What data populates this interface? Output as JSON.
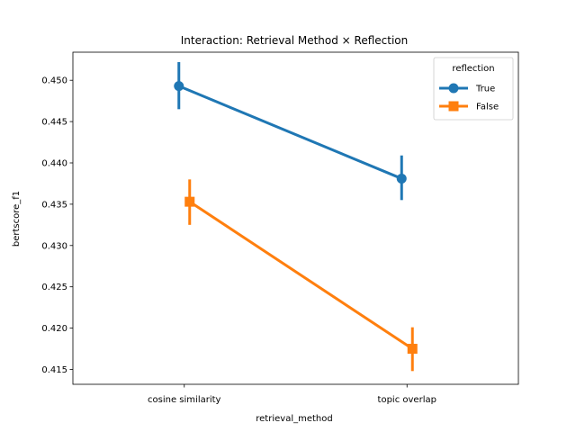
{
  "chart_data": {
    "type": "line",
    "title": "Interaction: Retrieval Method × Reflection",
    "xlabel": "retrieval_method",
    "ylabel": "bertscore_f1",
    "categories": [
      "cosine similarity",
      "topic overlap"
    ],
    "ylim": [
      0.4132,
      0.4534
    ],
    "yticks": [
      "0.415",
      "0.420",
      "0.425",
      "0.430",
      "0.435",
      "0.440",
      "0.445",
      "0.450"
    ],
    "grid": false,
    "legend": {
      "title": "reflection",
      "placement": "top-right"
    },
    "series": [
      {
        "name": "True",
        "color": "#1f77b4",
        "marker": "circle",
        "values": [
          0.4493,
          0.4381
        ],
        "ci_low": [
          0.4465,
          0.4355
        ],
        "ci_high": [
          0.4522,
          0.4409
        ]
      },
      {
        "name": "False",
        "color": "#ff7f0e",
        "marker": "square",
        "values": [
          0.4353,
          0.4175
        ],
        "ci_low": [
          0.4325,
          0.4148
        ],
        "ci_high": [
          0.438,
          0.4201
        ]
      }
    ]
  }
}
